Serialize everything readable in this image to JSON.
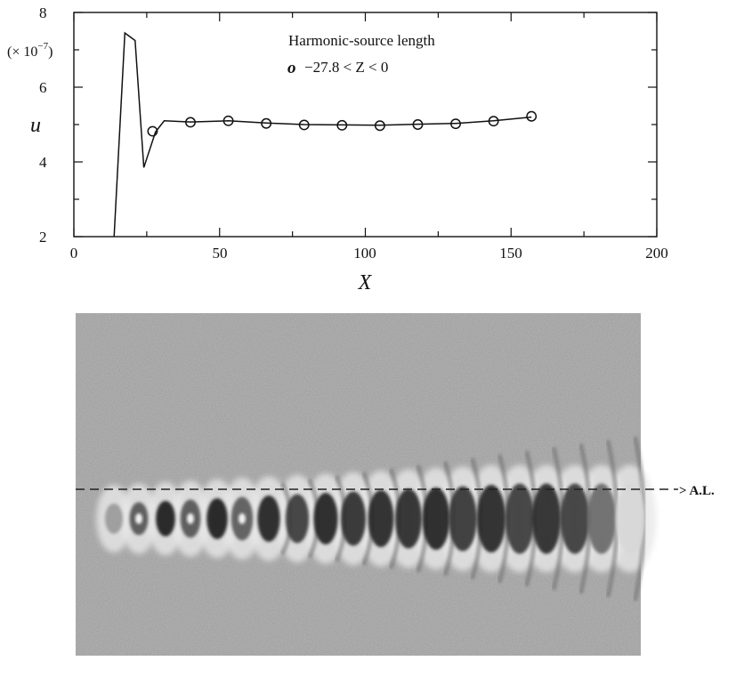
{
  "figure": {
    "plot": {
      "unit_label": "(× 10",
      "unit_exponent": "−7",
      "unit_close": ")",
      "xlabel": "X",
      "ylabel": "u",
      "legend_title": "Harmonic-source length",
      "legend_symbol": "o",
      "legend_entry": "−27.8 < Z < 0"
    },
    "image": {
      "axis_line_label": "> A.L."
    }
  },
  "chart_data": {
    "type": "line",
    "title": "",
    "xlabel": "X",
    "ylabel": "u",
    "y_multiplier": "× 10^-7",
    "xlim": [
      0,
      200
    ],
    "ylim": [
      2,
      8
    ],
    "xticks": [
      0,
      50,
      100,
      150,
      200
    ],
    "yticks": [
      2,
      4,
      6,
      8
    ],
    "grid": false,
    "legend_position": "top-right",
    "series": [
      {
        "style": "line",
        "x": [
          13.8,
          17.5,
          21,
          24,
          28,
          31,
          40,
          53,
          66,
          79,
          92,
          105,
          118,
          131,
          144,
          157
        ],
        "y": [
          2.0,
          7.45,
          7.25,
          3.85,
          4.8,
          5.1,
          5.07,
          5.1,
          5.04,
          5.0,
          4.99,
          4.98,
          5.01,
          5.03,
          5.1,
          5.2
        ]
      },
      {
        "name": "−27.8 < Z < 0",
        "style": "markers",
        "marker": "open-circle",
        "x": [
          27,
          40,
          53,
          66,
          79,
          92,
          105,
          118,
          131,
          144,
          157
        ],
        "y": [
          4.82,
          5.06,
          5.1,
          5.03,
          4.99,
          4.98,
          4.97,
          5.0,
          5.02,
          5.09,
          5.22
        ]
      }
    ]
  }
}
